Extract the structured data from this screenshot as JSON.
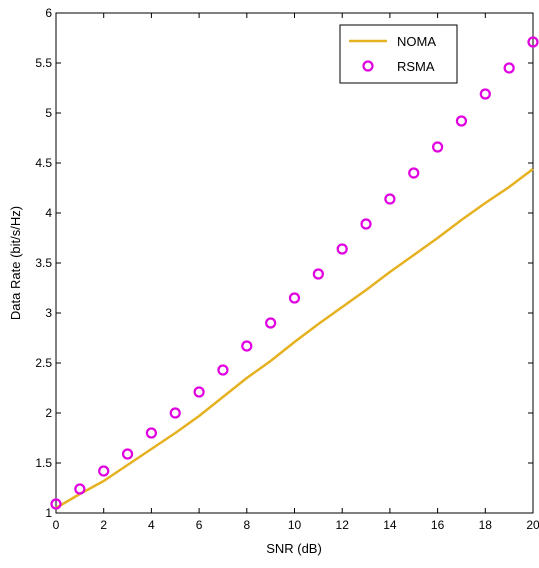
{
  "chart_data": {
    "type": "line",
    "title": "",
    "xlabel": "SNR (dB)",
    "ylabel": "Data Rate (bit/s/Hz)",
    "xlim": [
      0,
      20
    ],
    "ylim": [
      1,
      6
    ],
    "xticks": [
      0,
      2,
      4,
      6,
      8,
      10,
      12,
      14,
      16,
      18,
      20
    ],
    "yticks": [
      1,
      1.5,
      2,
      2.5,
      3,
      3.5,
      4,
      4.5,
      5,
      5.5,
      6
    ],
    "grid": false,
    "legend_position": "top-right",
    "x": [
      0,
      1,
      2,
      3,
      4,
      5,
      6,
      7,
      8,
      9,
      10,
      11,
      12,
      13,
      14,
      15,
      16,
      17,
      18,
      19,
      20
    ],
    "series": [
      {
        "name": "NOMA",
        "style": "line",
        "color": "#e6b120",
        "values": [
          1.05,
          1.19,
          1.32,
          1.48,
          1.64,
          1.8,
          1.97,
          2.16,
          2.35,
          2.52,
          2.71,
          2.89,
          3.06,
          3.23,
          3.41,
          3.58,
          3.75,
          3.93,
          4.1,
          4.26,
          4.44
        ]
      },
      {
        "name": "RSMA",
        "style": "marker-circle",
        "color": "#e000e0",
        "values": [
          1.09,
          1.24,
          1.42,
          1.59,
          1.8,
          2.0,
          2.21,
          2.43,
          2.67,
          2.9,
          3.15,
          3.39,
          3.64,
          3.89,
          4.14,
          4.4,
          4.66,
          4.92,
          5.19,
          5.45,
          5.71
        ]
      }
    ]
  }
}
